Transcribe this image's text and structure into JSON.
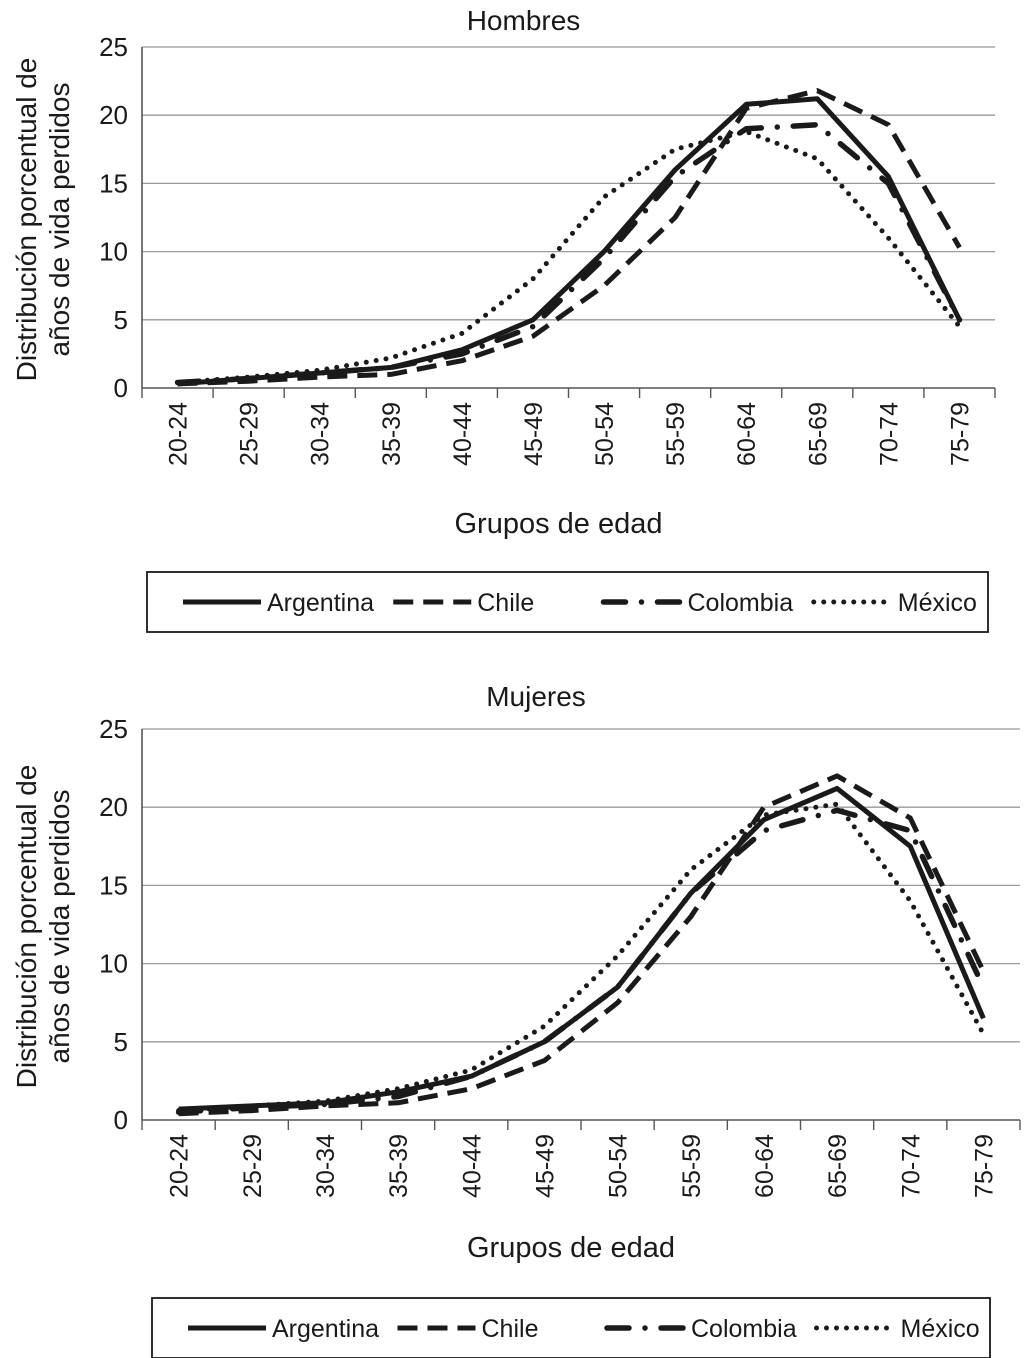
{
  "colors": {
    "line": "#1a1a1a",
    "grid": "#9a9a9a",
    "axis": "#555555"
  },
  "chart_data": [
    {
      "type": "line",
      "title": "Hombres",
      "xlabel": "Grupos de edad",
      "ylabel_lines": [
        "Distribución porcentual de",
        "años de vida perdidos"
      ],
      "ylim": [
        0,
        25
      ],
      "yticks": [
        0,
        5,
        10,
        15,
        20,
        25
      ],
      "grid": true,
      "legend_position": "bottom",
      "categories": [
        "20-24",
        "25-29",
        "30-34",
        "35-39",
        "40-44",
        "45-49",
        "50-54",
        "55-59",
        "60-64",
        "65-69",
        "70-74",
        "75-79"
      ],
      "series": [
        {
          "name": "Argentina",
          "style": "solid",
          "values": [
            0.3,
            0.7,
            1.1,
            1.5,
            2.8,
            5.0,
            10.0,
            16.0,
            20.8,
            21.2,
            15.5,
            5.0
          ]
        },
        {
          "name": "Chile",
          "style": "dashed",
          "values": [
            0.3,
            0.5,
            0.8,
            1.0,
            2.0,
            3.8,
            7.5,
            12.5,
            20.5,
            21.8,
            19.3,
            10.3
          ]
        },
        {
          "name": "Colombia",
          "style": "dashdot",
          "values": [
            0.4,
            0.7,
            1.1,
            1.5,
            2.5,
            4.5,
            9.5,
            15.5,
            19.0,
            19.3,
            15.0,
            5.0
          ]
        },
        {
          "name": "México",
          "style": "dotted",
          "values": [
            0.4,
            0.8,
            1.3,
            2.2,
            4.0,
            8.0,
            14.0,
            17.5,
            18.8,
            16.8,
            11.0,
            4.5
          ]
        }
      ]
    },
    {
      "type": "line",
      "title": "Mujeres",
      "xlabel": "Grupos de edad",
      "ylabel_lines": [
        "Distribución porcentual de",
        "años de vida perdidos"
      ],
      "ylim": [
        0,
        25
      ],
      "yticks": [
        0,
        5,
        10,
        15,
        20,
        25
      ],
      "grid": true,
      "legend_position": "bottom",
      "categories": [
        "20-24",
        "25-29",
        "30-34",
        "35-39",
        "40-44",
        "45-49",
        "50-54",
        "55-59",
        "60-64",
        "65-69",
        "70-74",
        "75-79"
      ],
      "series": [
        {
          "name": "Argentina",
          "style": "solid",
          "values": [
            0.7,
            0.9,
            1.1,
            1.8,
            2.8,
            5.0,
            8.5,
            14.5,
            19.2,
            21.2,
            17.5,
            6.5
          ]
        },
        {
          "name": "Chile",
          "style": "dashed",
          "values": [
            0.4,
            0.6,
            0.9,
            1.1,
            2.0,
            3.8,
            7.5,
            13.0,
            20.0,
            22.0,
            19.3,
            9.5
          ]
        },
        {
          "name": "Colombia",
          "style": "dashdot",
          "values": [
            0.5,
            0.8,
            1.0,
            1.5,
            2.8,
            5.0,
            8.5,
            14.5,
            18.5,
            19.8,
            18.5,
            8.5
          ]
        },
        {
          "name": "México",
          "style": "dotted",
          "values": [
            0.6,
            0.9,
            1.2,
            2.0,
            3.2,
            6.0,
            10.5,
            16.0,
            19.5,
            20.2,
            14.0,
            5.5
          ]
        }
      ]
    }
  ]
}
